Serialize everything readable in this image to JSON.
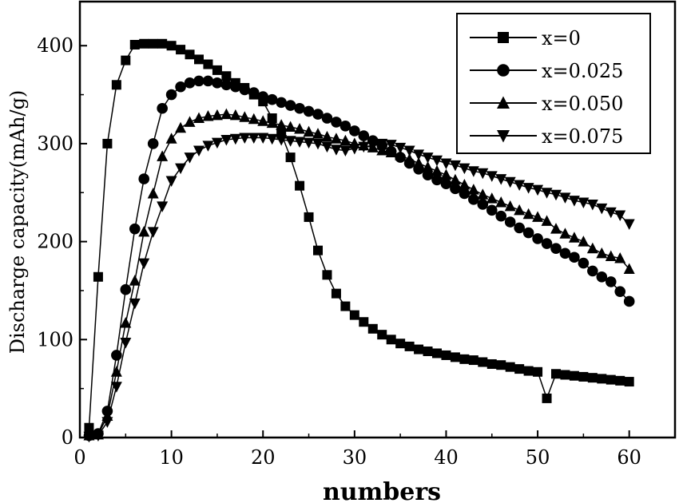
{
  "chart_data": {
    "type": "line",
    "xlabel": "numbers",
    "ylabel": "Discharge capacity(mAh/g)",
    "xlim": [
      0,
      65
    ],
    "ylim": [
      0,
      445
    ],
    "xticks": [
      0,
      10,
      20,
      30,
      40,
      50,
      60
    ],
    "yticks": [
      0,
      100,
      200,
      300,
      400
    ],
    "grid": false,
    "legend_position": "top-right",
    "series": [
      {
        "name": "x=0",
        "marker": "square",
        "x": [
          1,
          2,
          3,
          4,
          5,
          6,
          7,
          8,
          9,
          10,
          11,
          12,
          13,
          14,
          15,
          16,
          17,
          18,
          19,
          20,
          21,
          22,
          23,
          24,
          25,
          26,
          27,
          28,
          29,
          30,
          31,
          32,
          33,
          34,
          35,
          36,
          37,
          38,
          39,
          40,
          41,
          42,
          43,
          44,
          45,
          46,
          47,
          48,
          49,
          50,
          51,
          52,
          53,
          54,
          55,
          56,
          57,
          58,
          59,
          60
        ],
        "values": [
          10,
          164,
          300,
          360,
          385,
          401,
          402,
          402,
          402,
          400,
          396,
          391,
          386,
          381,
          375,
          369,
          362,
          357,
          350,
          343,
          326,
          310,
          286,
          257,
          225,
          191,
          166,
          147,
          134,
          125,
          118,
          111,
          105,
          100,
          96,
          93,
          90,
          88,
          86,
          84,
          82,
          80,
          79,
          77,
          75,
          74,
          72,
          70,
          68,
          67,
          40,
          65,
          64,
          63,
          62,
          61,
          60,
          59,
          58,
          57
        ]
      },
      {
        "name": "x=0.025",
        "marker": "circle",
        "x": [
          1,
          2,
          3,
          4,
          5,
          6,
          7,
          8,
          9,
          10,
          11,
          12,
          13,
          14,
          15,
          16,
          17,
          18,
          19,
          20,
          21,
          22,
          23,
          24,
          25,
          26,
          27,
          28,
          29,
          30,
          31,
          32,
          33,
          34,
          35,
          36,
          37,
          38,
          39,
          40,
          41,
          42,
          43,
          44,
          45,
          46,
          47,
          48,
          49,
          50,
          51,
          52,
          53,
          54,
          55,
          56,
          57,
          58,
          59,
          60
        ],
        "values": [
          2,
          4,
          27,
          84,
          151,
          213,
          264,
          300,
          336,
          350,
          358,
          362,
          364,
          364,
          362,
          360,
          358,
          355,
          352,
          348,
          345,
          342,
          339,
          336,
          333,
          330,
          326,
          322,
          318,
          313,
          308,
          303,
          298,
          292,
          286,
          280,
          274,
          268,
          263,
          259,
          254,
          249,
          243,
          238,
          232,
          226,
          220,
          214,
          209,
          203,
          198,
          193,
          188,
          184,
          178,
          170,
          164,
          159,
          149,
          139
        ]
      },
      {
        "name": "x=0.050",
        "marker": "triangle-up",
        "x": [
          1,
          2,
          3,
          4,
          5,
          6,
          7,
          8,
          9,
          10,
          11,
          12,
          13,
          14,
          15,
          16,
          17,
          18,
          19,
          20,
          21,
          22,
          23,
          24,
          25,
          26,
          27,
          28,
          29,
          30,
          31,
          32,
          33,
          34,
          35,
          36,
          37,
          38,
          39,
          40,
          41,
          42,
          43,
          44,
          45,
          46,
          47,
          48,
          49,
          50,
          51,
          52,
          53,
          54,
          55,
          56,
          57,
          58,
          59,
          60
        ],
        "values": [
          2,
          3,
          22,
          67,
          117,
          160,
          210,
          249,
          287,
          305,
          316,
          322,
          326,
          328,
          329,
          330,
          329,
          327,
          325,
          323,
          321,
          319,
          317,
          315,
          312,
          310,
          307,
          305,
          303,
          300,
          298,
          296,
          293,
          291,
          288,
          284,
          280,
          276,
          272,
          268,
          263,
          258,
          253,
          248,
          244,
          240,
          236,
          232,
          228,
          225,
          221,
          213,
          208,
          204,
          200,
          193,
          188,
          185,
          183,
          172
        ]
      },
      {
        "name": "x=0.075",
        "marker": "triangle-down",
        "x": [
          1,
          2,
          3,
          4,
          5,
          6,
          7,
          8,
          9,
          10,
          11,
          12,
          13,
          14,
          15,
          16,
          17,
          18,
          19,
          20,
          21,
          22,
          23,
          24,
          25,
          26,
          27,
          28,
          29,
          30,
          31,
          32,
          33,
          34,
          35,
          36,
          37,
          38,
          39,
          40,
          41,
          42,
          43,
          44,
          45,
          46,
          47,
          48,
          49,
          50,
          51,
          52,
          53,
          54,
          55,
          56,
          57,
          58,
          59,
          60
        ],
        "values": [
          1,
          2,
          16,
          52,
          97,
          137,
          178,
          210,
          236,
          262,
          275,
          286,
          293,
          298,
          301,
          304,
          305,
          306,
          306,
          306,
          305,
          304,
          303,
          302,
          301,
          300,
          297,
          294,
          293,
          295,
          297,
          298,
          300,
          299,
          296,
          293,
          289,
          286,
          283,
          280,
          278,
          275,
          272,
          270,
          267,
          264,
          261,
          258,
          255,
          253,
          250,
          248,
          245,
          242,
          240,
          238,
          234,
          230,
          227,
          218
        ]
      }
    ]
  }
}
